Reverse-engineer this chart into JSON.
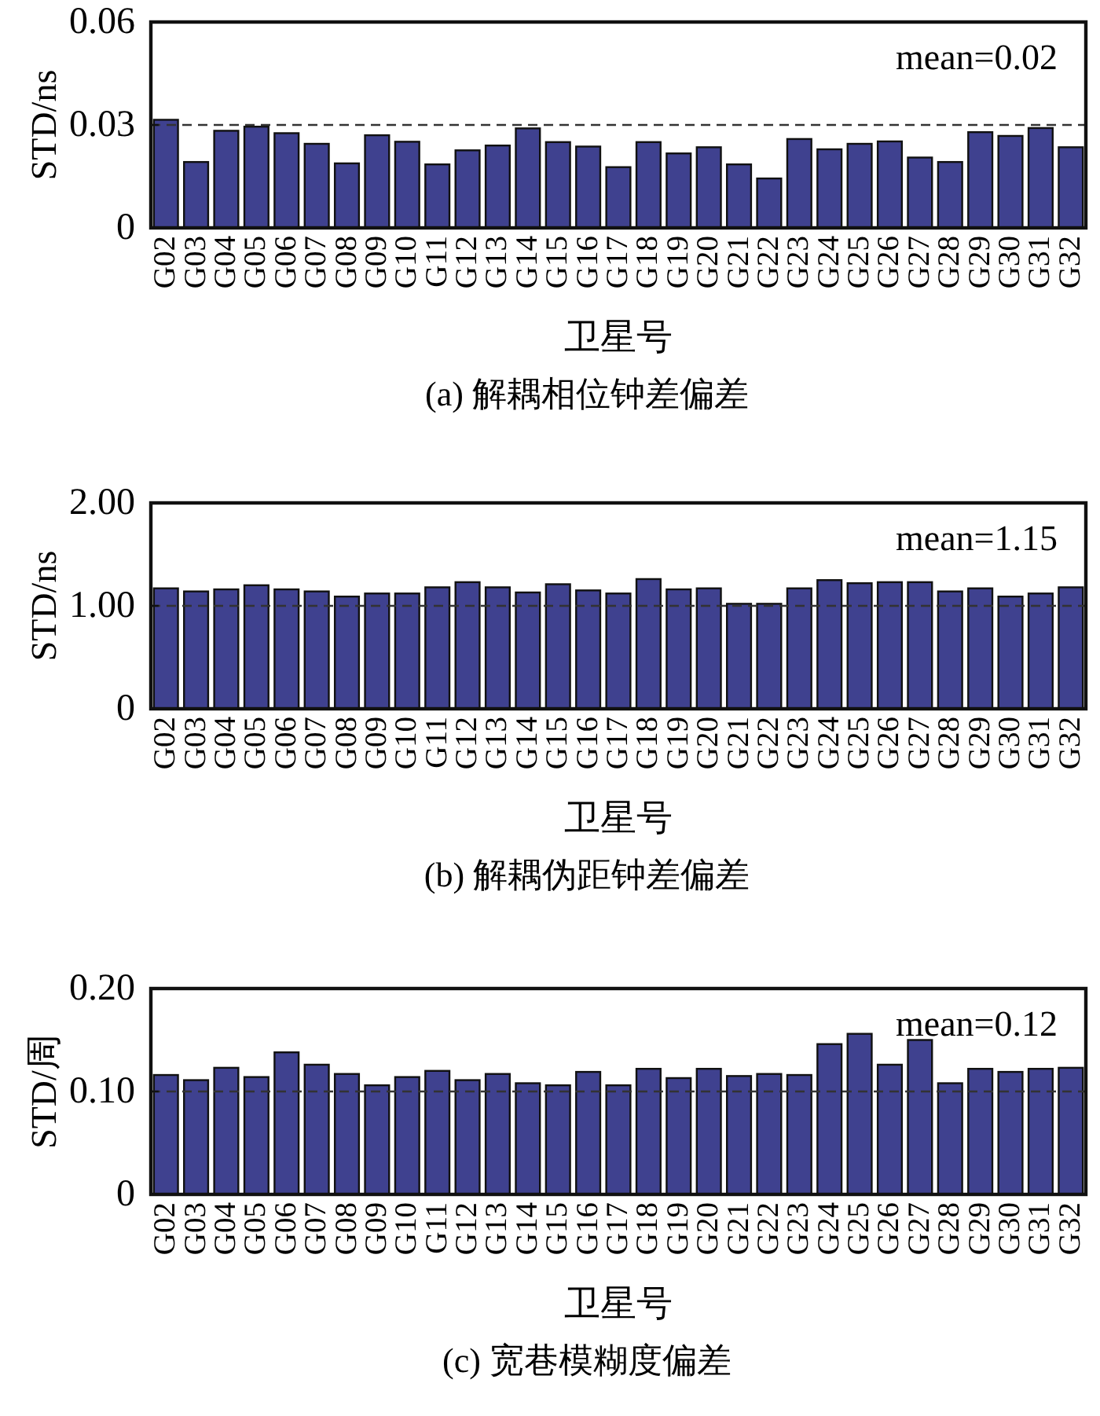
{
  "chart_data": [
    {
      "type": "bar",
      "xlabel": "卫星号",
      "ylabel": "STD/ns",
      "color": "#3f418f",
      "categories": [
        "G02",
        "G03",
        "G04",
        "G05",
        "G06",
        "G07",
        "G08",
        "G09",
        "G10",
        "G11",
        "G12",
        "G13",
        "G14",
        "G15",
        "G16",
        "G17",
        "G18",
        "G19",
        "G20",
        "G21",
        "G22",
        "G23",
        "G24",
        "G25",
        "G26",
        "G27",
        "G28",
        "G29",
        "G30",
        "G31",
        "G32"
      ],
      "values": [
        0.0315,
        0.0192,
        0.0283,
        0.0295,
        0.0276,
        0.0245,
        0.0188,
        0.027,
        0.0251,
        0.0185,
        0.0226,
        0.024,
        0.029,
        0.025,
        0.0237,
        0.0177,
        0.025,
        0.0217,
        0.0235,
        0.0185,
        0.0144,
        0.0259,
        0.0229,
        0.0245,
        0.0252,
        0.0205,
        0.0192,
        0.0279,
        0.0268,
        0.0291,
        0.0235
      ],
      "ylim": [
        0,
        0.06
      ],
      "yticks": [
        0,
        0.03,
        0.06
      ],
      "ref_lines": [
        {
          "axis": "y",
          "value": 0.03,
          "color": "#333333",
          "line_style": "dashed"
        }
      ],
      "annotations": [
        "mean=0.02",
        "(a) 解耦相位钟差偏差"
      ]
    },
    {
      "type": "bar",
      "xlabel": "卫星号",
      "ylabel": "STD/ns",
      "color": "#3f418f",
      "categories": [
        "G02",
        "G03",
        "G04",
        "G05",
        "G06",
        "G07",
        "G08",
        "G09",
        "G10",
        "G11",
        "G12",
        "G13",
        "G14",
        "G15",
        "G16",
        "G17",
        "G18",
        "G19",
        "G20",
        "G21",
        "G22",
        "G23",
        "G24",
        "G25",
        "G26",
        "G27",
        "G28",
        "G29",
        "G30",
        "G31",
        "G32"
      ],
      "values": [
        1.17,
        1.14,
        1.16,
        1.2,
        1.16,
        1.14,
        1.09,
        1.12,
        1.12,
        1.18,
        1.23,
        1.18,
        1.13,
        1.21,
        1.15,
        1.12,
        1.26,
        1.16,
        1.17,
        1.02,
        1.02,
        1.17,
        1.25,
        1.22,
        1.23,
        1.23,
        1.14,
        1.17,
        1.09,
        1.12,
        1.18
      ],
      "ylim": [
        0,
        2
      ],
      "yticks": [
        0,
        {
          "value": 1,
          "label": "1.00"
        },
        {
          "value": 2,
          "label": "2.00"
        }
      ],
      "ref_lines": [
        {
          "axis": "y",
          "value": 1,
          "color": "#333333",
          "line_style": "dashed"
        }
      ],
      "annotations": [
        "mean=1.15",
        "(b) 解耦伪距钟差偏差"
      ]
    },
    {
      "type": "bar",
      "xlabel": "卫星号",
      "ylabel": "STD/周",
      "color": "#3f418f",
      "categories": [
        "G02",
        "G03",
        "G04",
        "G05",
        "G06",
        "G07",
        "G08",
        "G09",
        "G10",
        "G11",
        "G12",
        "G13",
        "G14",
        "G15",
        "G16",
        "G17",
        "G18",
        "G19",
        "G20",
        "G21",
        "G22",
        "G23",
        "G24",
        "G25",
        "G26",
        "G27",
        "G28",
        "G29",
        "G30",
        "G31",
        "G32"
      ],
      "values": [
        0.116,
        0.111,
        0.123,
        0.114,
        0.138,
        0.126,
        0.117,
        0.106,
        0.114,
        0.12,
        0.111,
        0.117,
        0.108,
        0.106,
        0.119,
        0.106,
        0.122,
        0.113,
        0.122,
        0.115,
        0.117,
        0.116,
        0.146,
        0.156,
        0.126,
        0.15,
        0.108,
        0.122,
        0.119,
        0.122,
        0.123
      ],
      "ylim": [
        0,
        0.2
      ],
      "yticks": [
        0,
        {
          "value": 0.1,
          "label": "0.10"
        },
        {
          "value": 0.2,
          "label": "0.20"
        }
      ],
      "ref_lines": [
        {
          "axis": "y",
          "value": 0.1,
          "color": "#333333",
          "line_style": "dashed"
        }
      ],
      "annotations": [
        "mean=0.12",
        "(c) 宽巷模糊度偏差"
      ]
    }
  ]
}
